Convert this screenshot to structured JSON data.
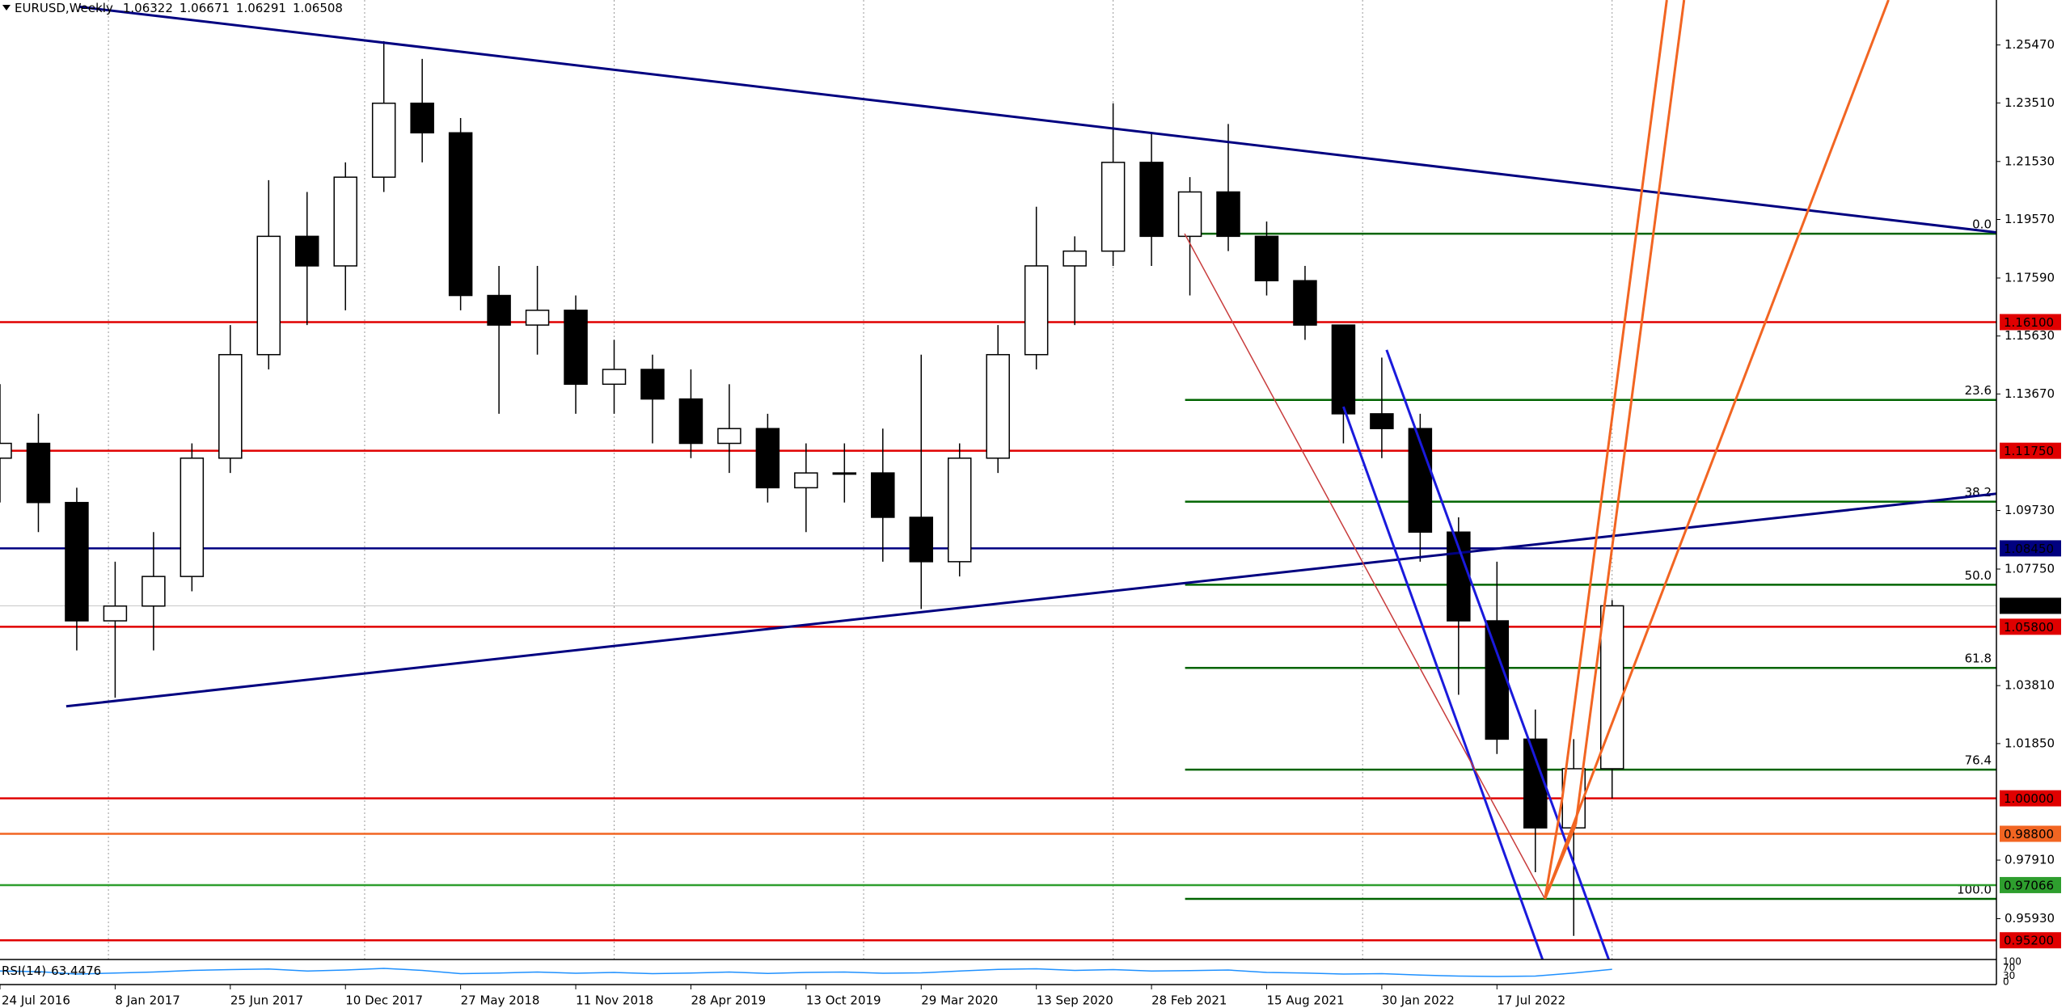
{
  "chart_data": {
    "type": "candlestick",
    "title": "EURUSD,Weekly",
    "header_ohlc": [
      1.06322,
      1.06671,
      1.06291,
      1.06508
    ],
    "x": [
      0,
      8,
      16,
      24,
      32,
      40,
      48,
      56,
      64,
      72,
      80,
      88,
      96,
      104,
      112,
      120,
      128,
      136,
      144,
      152,
      160,
      168,
      176,
      184,
      192,
      200,
      208,
      216,
      224,
      232,
      240,
      248,
      256,
      264,
      272,
      280,
      288,
      296,
      304,
      312,
      320,
      328,
      336
    ],
    "open": [
      1.115,
      1.12,
      1.1,
      1.06,
      1.065,
      1.075,
      1.115,
      1.15,
      1.19,
      1.18,
      1.21,
      1.235,
      1.225,
      1.17,
      1.16,
      1.165,
      1.14,
      1.145,
      1.135,
      1.12,
      1.125,
      1.105,
      1.11,
      1.11,
      1.095,
      1.08,
      1.115,
      1.15,
      1.18,
      1.185,
      1.215,
      1.19,
      1.205,
      1.19,
      1.175,
      1.16,
      1.13,
      1.125,
      1.09,
      1.06,
      1.02,
      0.99,
      1.01
    ],
    "high": [
      1.14,
      1.13,
      1.105,
      1.08,
      1.09,
      1.12,
      1.16,
      1.209,
      1.205,
      1.215,
      1.256,
      1.25,
      1.23,
      1.18,
      1.18,
      1.17,
      1.155,
      1.15,
      1.145,
      1.14,
      1.13,
      1.12,
      1.12,
      1.125,
      1.15,
      1.12,
      1.16,
      1.2,
      1.19,
      1.235,
      1.225,
      1.21,
      1.228,
      1.195,
      1.18,
      1.16,
      1.149,
      1.13,
      1.095,
      1.08,
      1.03,
      1.02,
      1.067
    ],
    "low": [
      1.1,
      1.09,
      1.05,
      1.034,
      1.05,
      1.07,
      1.11,
      1.145,
      1.16,
      1.165,
      1.205,
      1.215,
      1.165,
      1.13,
      1.15,
      1.13,
      1.13,
      1.12,
      1.115,
      1.11,
      1.1,
      1.09,
      1.1,
      1.08,
      1.064,
      1.075,
      1.11,
      1.145,
      1.16,
      1.18,
      1.18,
      1.17,
      1.185,
      1.17,
      1.155,
      1.12,
      1.115,
      1.08,
      1.035,
      1.015,
      0.975,
      0.9535,
      1.0
    ],
    "close": [
      1.12,
      1.1,
      1.06,
      1.065,
      1.075,
      1.115,
      1.15,
      1.19,
      1.18,
      1.21,
      1.235,
      1.225,
      1.17,
      1.16,
      1.165,
      1.14,
      1.145,
      1.135,
      1.12,
      1.125,
      1.105,
      1.11,
      1.11,
      1.095,
      1.08,
      1.115,
      1.15,
      1.18,
      1.185,
      1.215,
      1.19,
      1.205,
      1.19,
      1.175,
      1.16,
      1.13,
      1.125,
      1.09,
      1.06,
      1.02,
      0.99,
      1.01,
      1.06508
    ],
    "xlim": [
      0,
      416.1
    ],
    "xticks": [
      {
        "value": 0,
        "label": "24 Jul 2016"
      },
      {
        "value": 24,
        "label": "8 Jan 2017"
      },
      {
        "value": 48,
        "label": "25 Jun 2017"
      },
      {
        "value": 72,
        "label": "10 Dec 2017"
      },
      {
        "value": 96,
        "label": "27 May 2018"
      },
      {
        "value": 120,
        "label": "11 Nov 2018"
      },
      {
        "value": 144,
        "label": "28 Apr 2019"
      },
      {
        "value": 168,
        "label": "13 Oct 2019"
      },
      {
        "value": 192,
        "label": "29 Mar 2020"
      },
      {
        "value": 216,
        "label": "13 Sep 2020"
      },
      {
        "value": 240,
        "label": "28 Feb 2021"
      },
      {
        "value": 264,
        "label": "15 Aug 2021"
      },
      {
        "value": 288,
        "label": "30 Jan 2022"
      },
      {
        "value": 312,
        "label": "17 Jul 2022"
      }
    ],
    "xgrid": [
      22.6,
      76,
      128,
      180,
      232,
      284,
      336
    ],
    "ylim": [
      0.9455,
      1.2699
    ],
    "yticks": [
      {
        "value": 1.2547,
        "label": "1.25470"
      },
      {
        "value": 1.2351,
        "label": "1.23510"
      },
      {
        "value": 1.2153,
        "label": "1.21530"
      },
      {
        "value": 1.1957,
        "label": "1.19570"
      },
      {
        "value": 1.1759,
        "label": "1.17590"
      },
      {
        "value": 1.1563,
        "label": "1.15630"
      },
      {
        "value": 1.1367,
        "label": "1.13670"
      },
      {
        "value": 1.0973,
        "label": "1.09730"
      },
      {
        "value": 1.0775,
        "label": "1.07750"
      },
      {
        "value": 1.0381,
        "label": "1.03810"
      },
      {
        "value": 1.0185,
        "label": "1.01850"
      },
      {
        "value": 0.9791,
        "label": "0.97910"
      },
      {
        "value": 0.9593,
        "label": "0.95930"
      }
    ],
    "levels": [
      {
        "value": 1.161,
        "label": "1.16100",
        "color": "#e00000"
      },
      {
        "value": 1.1175,
        "label": "1.11750",
        "color": "#e00000"
      },
      {
        "value": 1.0845,
        "label": "1.08450",
        "color": "#000080"
      },
      {
        "value": 1.06508,
        "color": "#000000"
      },
      {
        "value": 1.058,
        "label": "1.05800",
        "color": "#e00000"
      },
      {
        "value": 1.0,
        "label": "1.00000",
        "color": "#e00000"
      },
      {
        "value": 0.988,
        "label": "0.98800",
        "color": "#f26522"
      },
      {
        "value": 0.97066,
        "color": "#2e9e2e"
      },
      {
        "value": 0.952,
        "label": "0.95200",
        "color": "#e00000"
      }
    ],
    "fib": {
      "color": "#006400",
      "x_start": 247,
      "levels": [
        {
          "label": "0.0",
          "price": 1.1909
        },
        {
          "label": "23.6",
          "price": 1.1347
        },
        {
          "label": "38.2",
          "price": 1.1003
        },
        {
          "label": "50.0",
          "price": 1.0722
        },
        {
          "label": "61.8",
          "price": 1.0441
        },
        {
          "label": "76.4",
          "price": 1.0097
        },
        {
          "label": "100.0",
          "price": 0.966
        }
      ]
    },
    "trendlines": [
      {
        "color": "#000080",
        "points": [
          [
            16.5,
            1.2676
          ],
          [
            416.2,
            1.1913
          ]
        ]
      },
      {
        "color": "#000080",
        "points": [
          [
            13.8,
            1.0311
          ],
          [
            416.2,
            1.103
          ]
        ]
      },
      {
        "color": "#1a1adc",
        "points": [
          [
            280,
            1.1324
          ],
          [
            321.5,
            0.9455
          ]
        ]
      },
      {
        "color": "#1a1adc",
        "points": [
          [
            289,
            1.1516
          ],
          [
            335.3,
            0.9455
          ]
        ]
      },
      {
        "color": "#c83c3c",
        "points": [
          [
            246.9,
            1.1909
          ],
          [
            322,
            0.966
          ]
        ]
      },
      {
        "color": "#f26522",
        "points": [
          [
            322,
            0.966
          ],
          [
            325.6,
            0.9999
          ]
        ]
      },
      {
        "color": "#f26522",
        "points": [
          [
            322,
            0.966
          ],
          [
            328.4,
            0.991
          ]
        ]
      },
      {
        "color": "#f26522",
        "points": [
          [
            325.6,
            0.9999
          ],
          [
            347.4,
            1.2699
          ]
        ]
      },
      {
        "color": "#f26522",
        "points": [
          [
            328.4,
            0.991
          ],
          [
            351,
            1.2699
          ]
        ]
      },
      {
        "color": "#f26522",
        "points": [
          [
            322,
            0.966
          ],
          [
            393.6,
            1.2699
          ]
        ]
      }
    ],
    "rsi": {
      "name": "RSI(14)",
      "value": 63.4476,
      "color": "#1e90ff",
      "ylim": [
        0,
        100
      ],
      "yticks": [
        100,
        70,
        30,
        0
      ],
      "values": [
        55,
        52,
        40,
        45,
        50,
        58,
        62,
        65,
        55,
        60,
        68,
        58,
        42,
        45,
        50,
        44,
        48,
        42,
        45,
        50,
        43,
        48,
        50,
        44,
        46,
        55,
        63,
        66,
        58,
        62,
        55,
        57,
        60,
        48,
        45,
        40,
        42,
        35,
        30,
        28,
        30,
        45,
        63.4476
      ]
    }
  }
}
